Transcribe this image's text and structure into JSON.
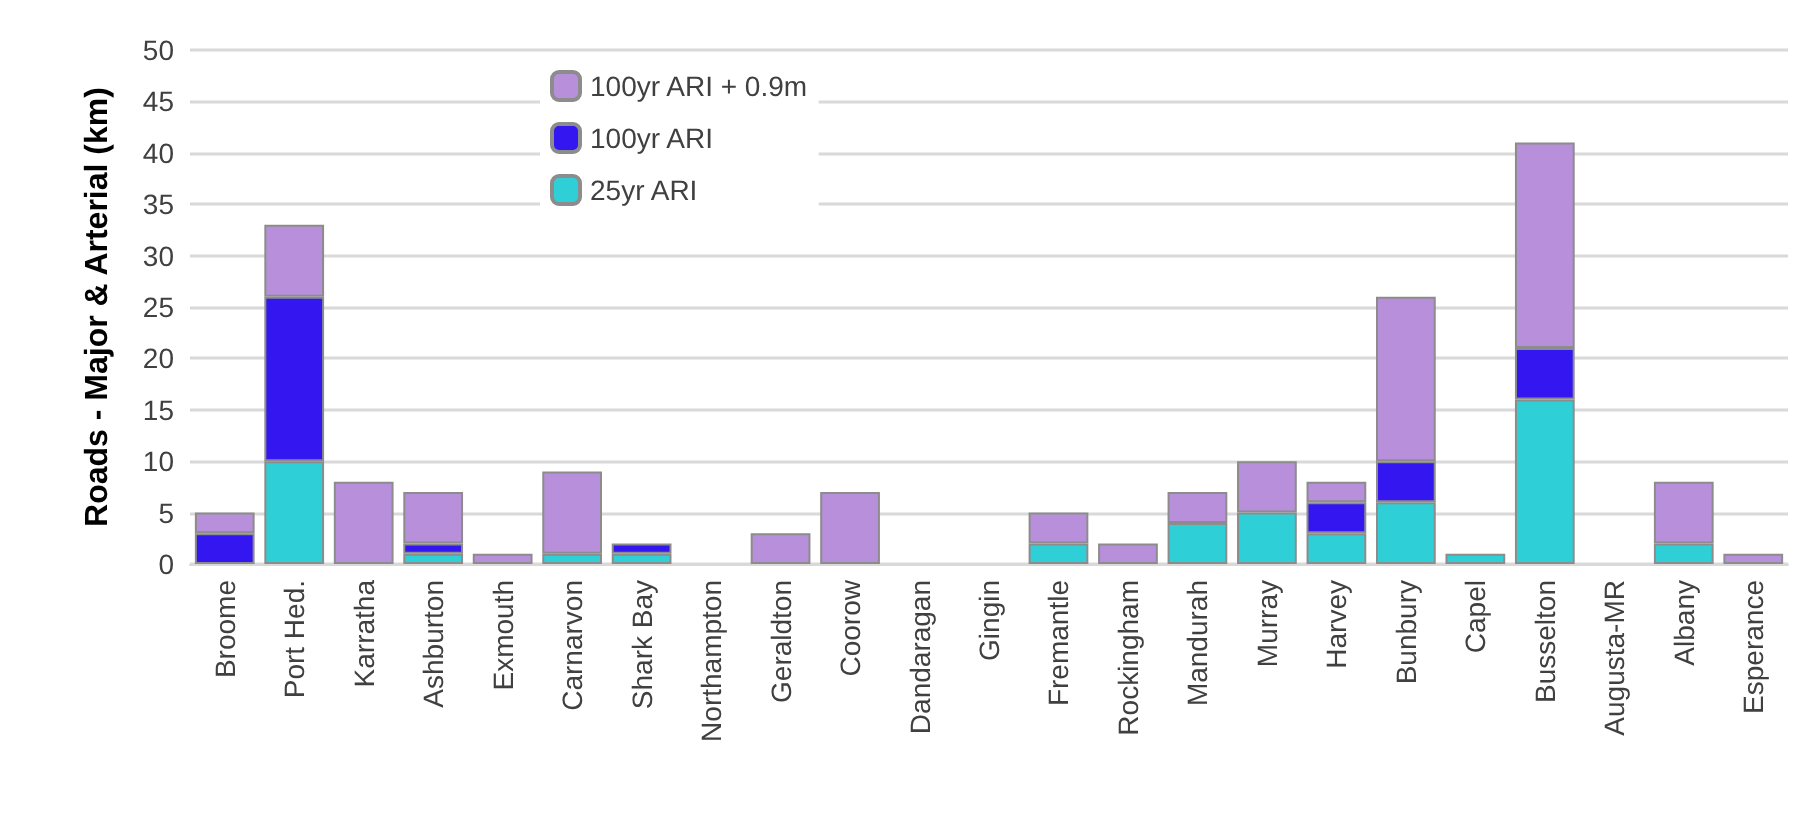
{
  "chart_data": {
    "type": "bar",
    "ylabel": "Roads - Major & Arterial (km)",
    "categories": [
      "Broome",
      "Port Hed.",
      "Karratha",
      "Ashburton",
      "Exmouth",
      "Carnarvon",
      "Shark Bay",
      "Northampton",
      "Geraldton",
      "Coorow",
      "Dandaragan",
      "Gingin",
      "Fremantle",
      "Rockingham",
      "Mandurah",
      "Murray",
      "Harvey",
      "Bunbury",
      "Capel",
      "Busselton",
      "Augusta-MR",
      "Albany",
      "Esperance"
    ],
    "series": [
      {
        "name": "25yr ARI",
        "color": "#2ecfd6",
        "values": [
          0,
          10,
          0,
          1,
          0,
          1,
          1,
          0,
          0,
          0,
          0,
          0,
          2,
          0,
          4,
          5,
          3,
          6,
          1,
          16,
          0,
          2,
          0
        ]
      },
      {
        "name": "100yr ARI",
        "color": "#3316f0",
        "values": [
          3,
          16,
          0,
          1,
          0,
          0,
          1,
          0,
          0,
          0,
          0,
          0,
          0,
          0,
          0,
          0,
          3,
          4,
          0,
          5,
          0,
          0,
          0
        ]
      },
      {
        "name": "100yr ARI + 0.9m",
        "color": "#b88fdb",
        "values": [
          2,
          7,
          8,
          5,
          1,
          8,
          0,
          0,
          3,
          7,
          0,
          0,
          3,
          2,
          3,
          5,
          2,
          16,
          0,
          20,
          0,
          6,
          1
        ]
      }
    ],
    "stacked": true,
    "ylim": [
      0,
      50
    ],
    "yticks": [
      0,
      5,
      10,
      15,
      20,
      25,
      30,
      35,
      40,
      45,
      50
    ],
    "grid": "y",
    "legend": "top"
  }
}
